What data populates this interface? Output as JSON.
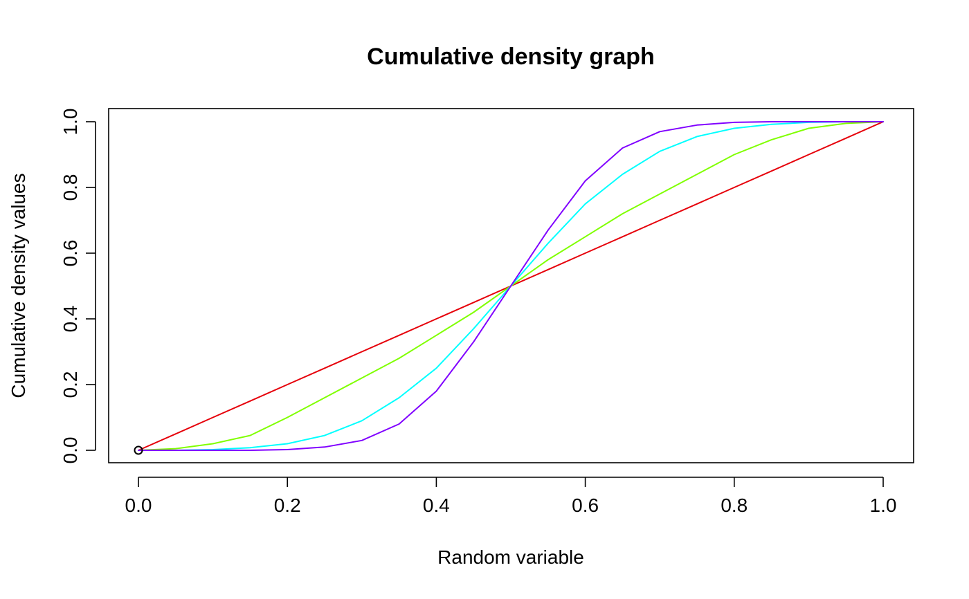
{
  "chart_data": {
    "type": "line",
    "title": "Cumulative density graph",
    "xlabel": "Random variable",
    "ylabel": "Cumulative density values",
    "xlim": [
      0,
      1
    ],
    "ylim": [
      0,
      1
    ],
    "x_ticks": [
      "0.0",
      "0.2",
      "0.4",
      "0.6",
      "0.8",
      "1.0"
    ],
    "y_ticks": [
      "0.0",
      "0.2",
      "0.4",
      "0.6",
      "0.8",
      "1.0"
    ],
    "grid": false,
    "legend": "none",
    "x": [
      0.0,
      0.05,
      0.1,
      0.15,
      0.2,
      0.25,
      0.3,
      0.35,
      0.4,
      0.45,
      0.5,
      0.55,
      0.6,
      0.65,
      0.7,
      0.75,
      0.8,
      0.85,
      0.9,
      0.95,
      1.0
    ],
    "series": [
      {
        "color": "#e6000a",
        "values": [
          0.0,
          0.05,
          0.1,
          0.15,
          0.2,
          0.25,
          0.3,
          0.35,
          0.4,
          0.45,
          0.5,
          0.55,
          0.6,
          0.65,
          0.7,
          0.75,
          0.8,
          0.85,
          0.9,
          0.95,
          1.0
        ]
      },
      {
        "color": "#80ff00",
        "values": [
          0.0,
          0.005,
          0.02,
          0.045,
          0.1,
          0.16,
          0.22,
          0.28,
          0.35,
          0.42,
          0.5,
          0.58,
          0.65,
          0.72,
          0.78,
          0.84,
          0.9,
          0.945,
          0.98,
          0.995,
          1.0
        ]
      },
      {
        "color": "#00ffff",
        "values": [
          0.0,
          0.0,
          0.002,
          0.008,
          0.02,
          0.045,
          0.09,
          0.16,
          0.25,
          0.37,
          0.5,
          0.63,
          0.75,
          0.84,
          0.91,
          0.955,
          0.98,
          0.992,
          0.998,
          1.0,
          1.0
        ]
      },
      {
        "color": "#8000ff",
        "values": [
          0.0,
          0.0,
          0.0,
          0.0,
          0.002,
          0.01,
          0.03,
          0.08,
          0.18,
          0.33,
          0.5,
          0.67,
          0.82,
          0.92,
          0.97,
          0.99,
          0.998,
          1.0,
          1.0,
          1.0,
          1.0
        ]
      }
    ],
    "points": [
      {
        "x": 0.0,
        "y": 0.0,
        "marker": "open-circle",
        "color": "#000000"
      }
    ]
  }
}
